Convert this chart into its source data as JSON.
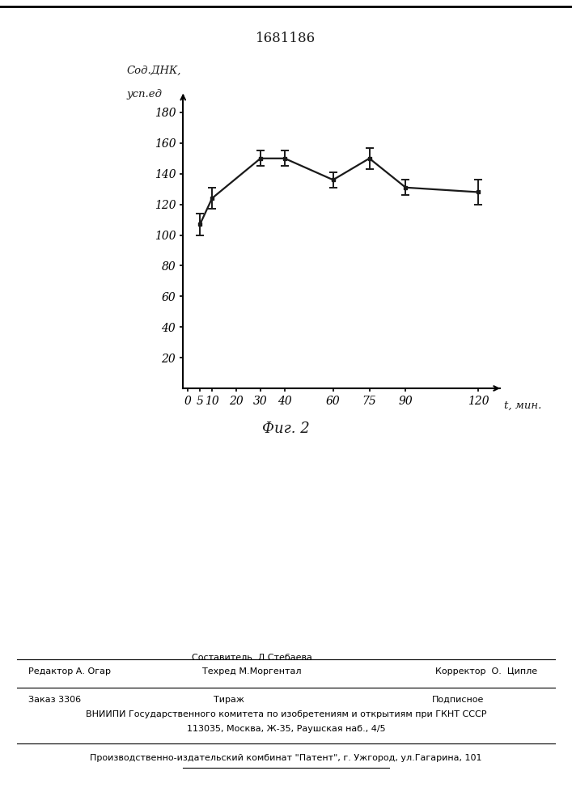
{
  "title": "1681186",
  "fig_label": "Фиг. 2",
  "ylabel_line1": "Сод.ДНК,",
  "ylabel_line2": "усп.ед",
  "xlabel": "t, мин.",
  "x": [
    5,
    10,
    30,
    40,
    60,
    75,
    90,
    120
  ],
  "y": [
    107,
    124,
    150,
    150,
    136,
    150,
    131,
    128
  ],
  "yerr": [
    7,
    7,
    5,
    5,
    5,
    7,
    5,
    8
  ],
  "xticks": [
    0,
    5,
    10,
    20,
    30,
    40,
    60,
    75,
    90,
    120
  ],
  "yticks": [
    20,
    40,
    60,
    80,
    100,
    120,
    140,
    160,
    180
  ],
  "ylim": [
    0,
    190
  ],
  "xlim": [
    -2,
    128
  ],
  "background_color": "#ffffff",
  "line_color": "#1a1a1a",
  "text_color": "#1a1a1a",
  "footer_line1_left": "Редактор А. Огар",
  "footer_line1_center": "Составитель  Л.Стебаева",
  "footer_line2_center": "Техред М.Моргентал",
  "footer_line1_right": "Корректор  О.  Ципле",
  "footer_zakaz": "Заказ 3306",
  "footer_tirazh": "Тираж",
  "footer_podpisnoe": "Подписное",
  "footer_vniiipi": "ВНИИПИ Государственного комитета по изобретениям и открытиям при ГКНТ СССР",
  "footer_address": "113035, Москва, Ж-35, Раушская наб., 4/5",
  "footer_patent": "Производственно-издательский комбинат \"Патент\", г. Ужгород, ул.Гагарина, 101"
}
